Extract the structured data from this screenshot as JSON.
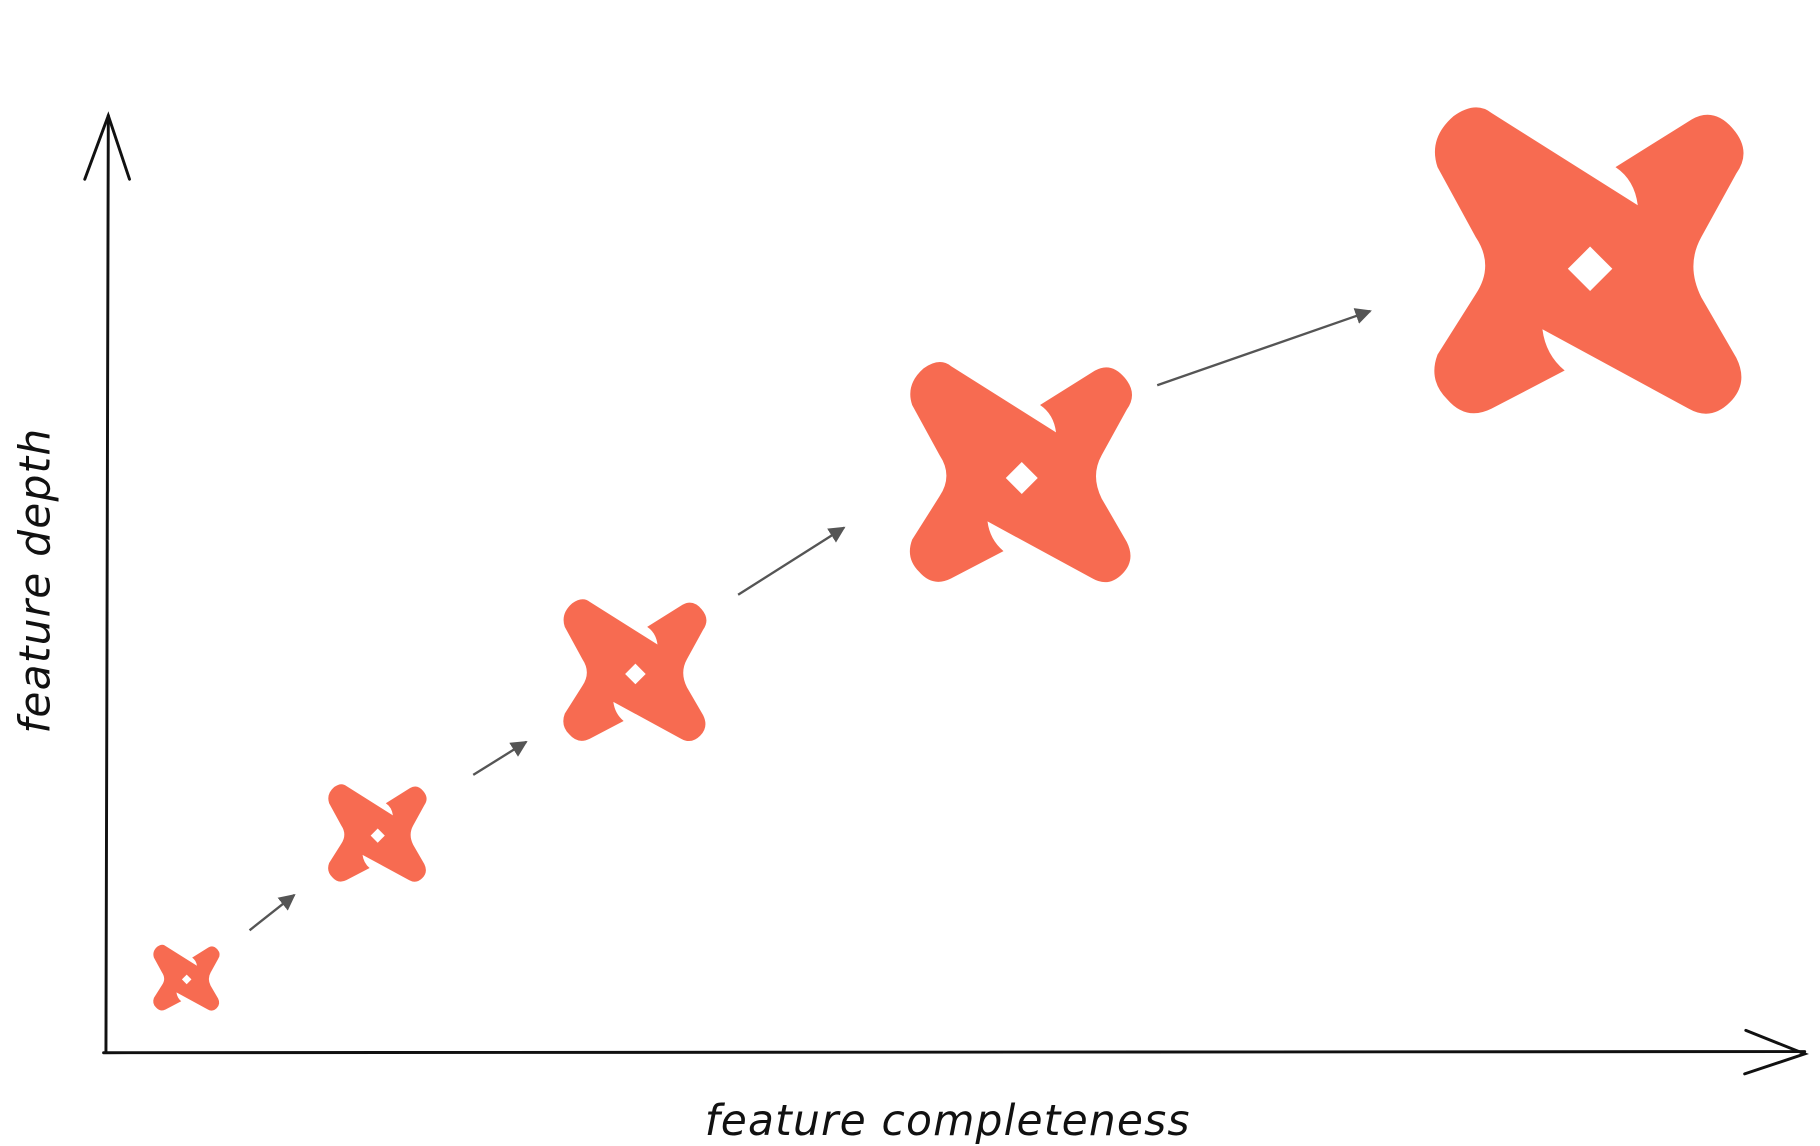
{
  "diagram": {
    "x_axis_label": "feature completeness",
    "y_axis_label": "feature depth",
    "logo_color": "#F76B51",
    "arrow_color": "#555555",
    "axis_color": "#111111",
    "logo_icon": "dbt-logo-icon",
    "stages": [
      1,
      2,
      3,
      4,
      5
    ]
  }
}
